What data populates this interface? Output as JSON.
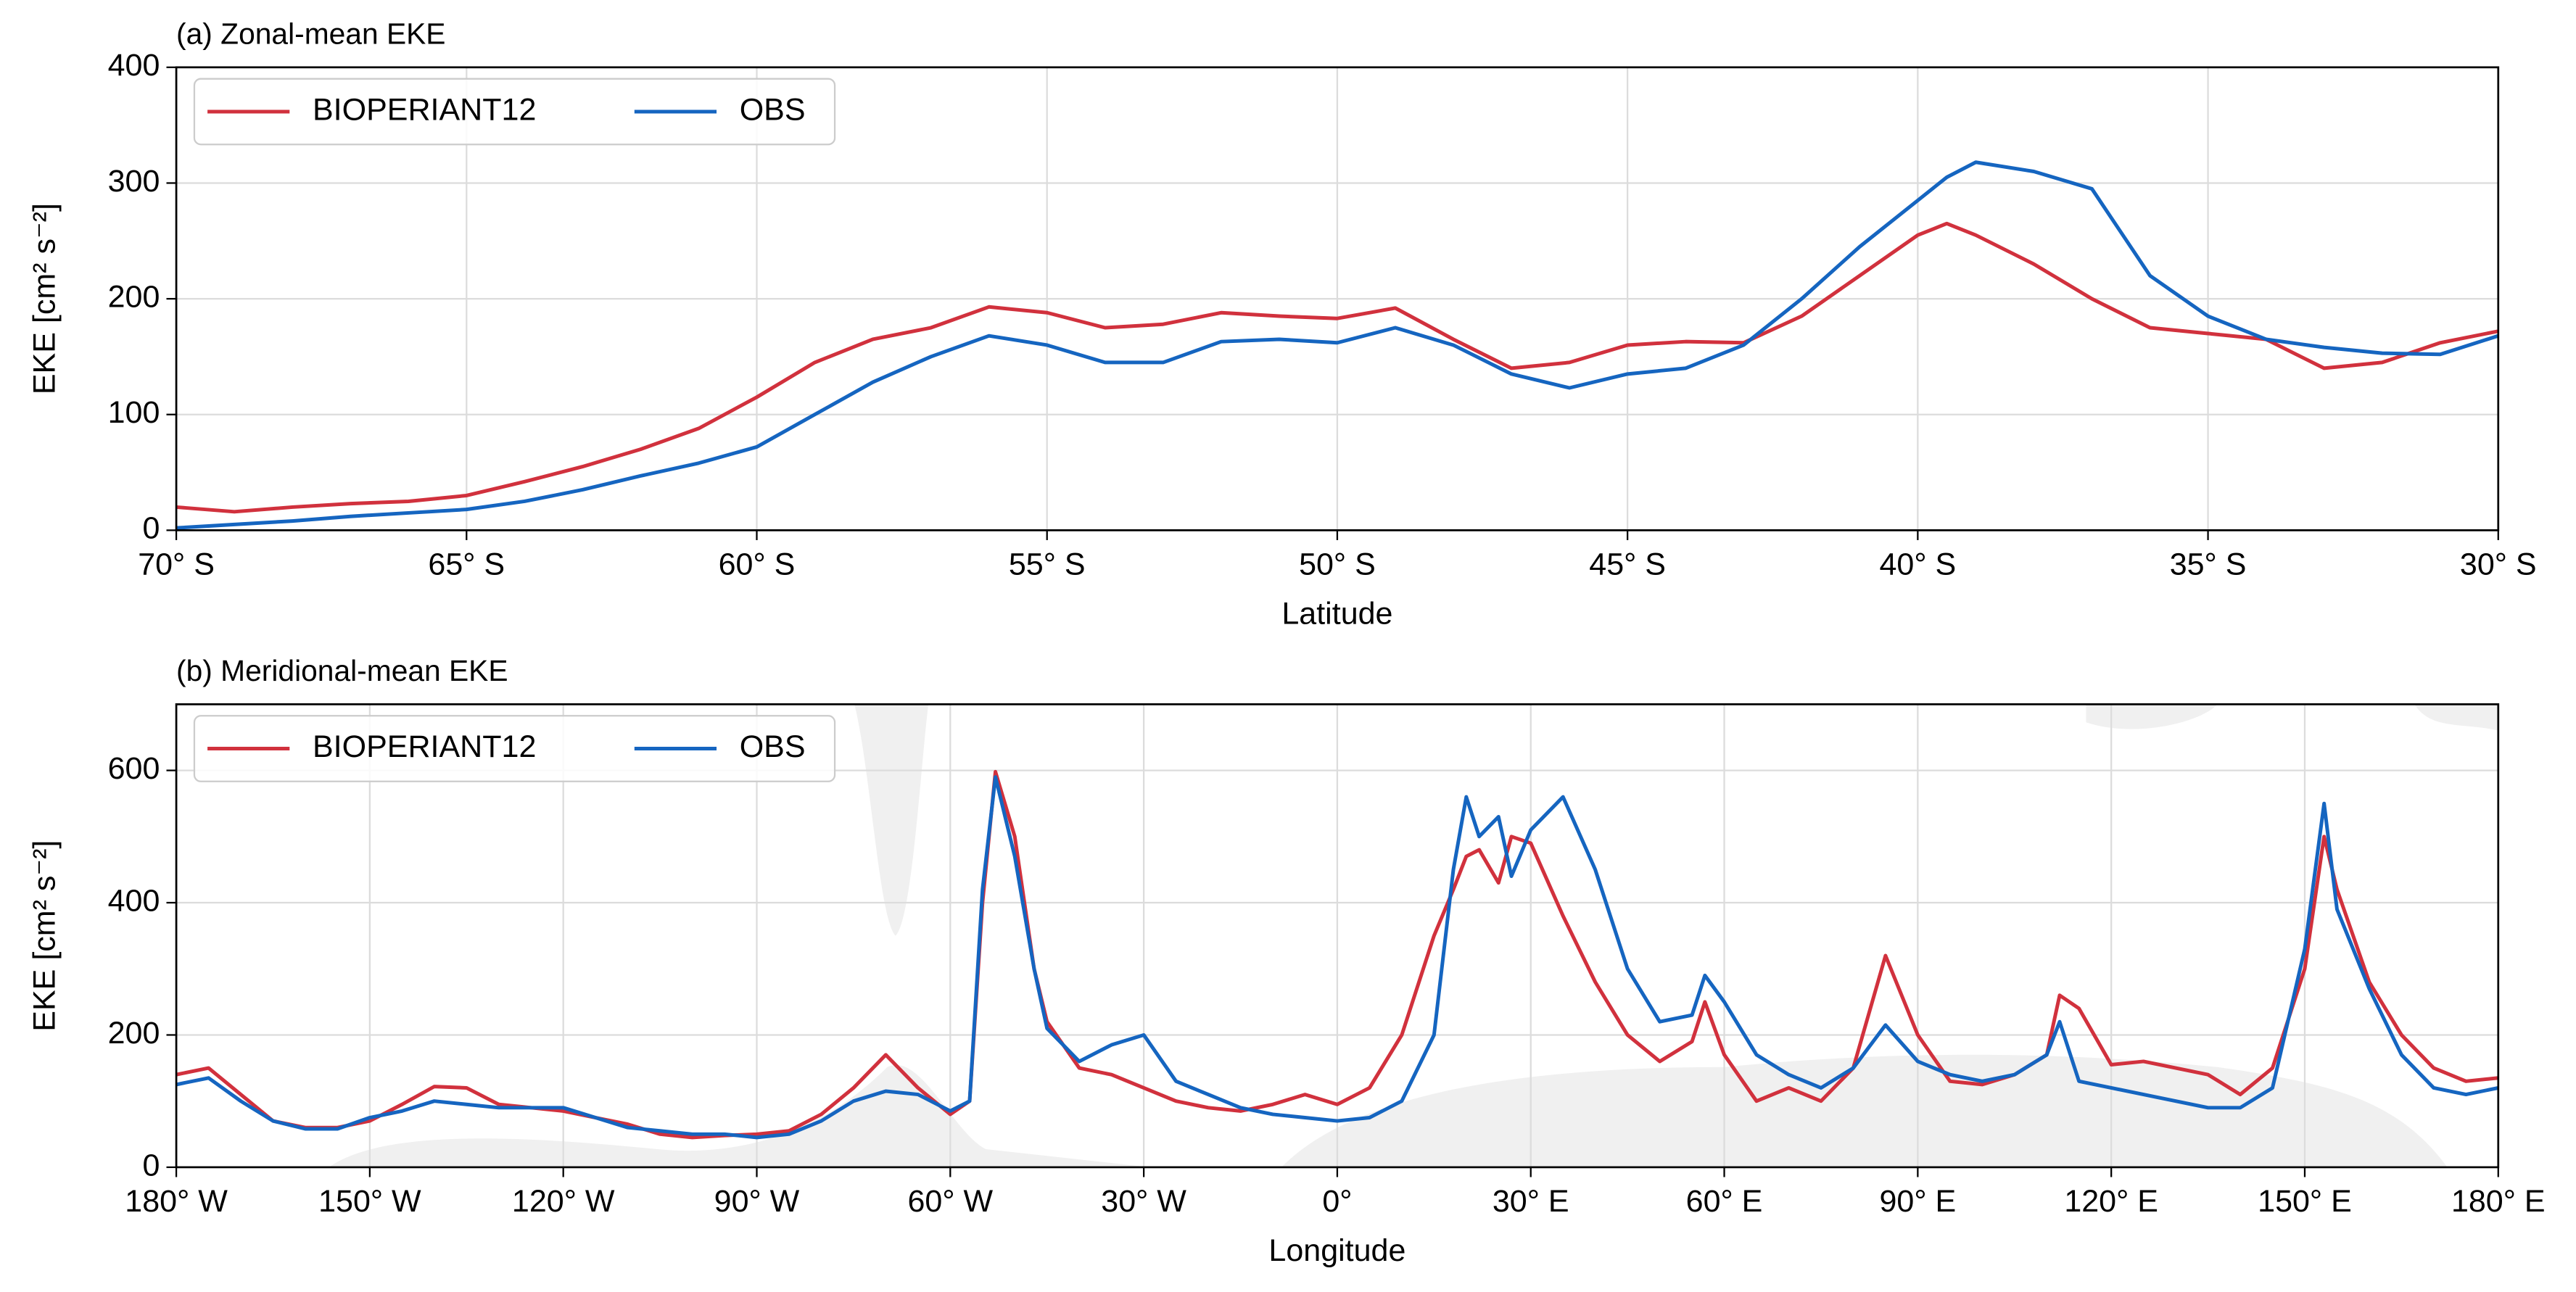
{
  "chart_data": [
    {
      "type": "line",
      "title": "(a) Zonal-mean EKE",
      "xlabel": "Latitude",
      "ylabel": "EKE [cm² s⁻²]",
      "x": [
        -70,
        -69,
        -68,
        -67,
        -66,
        -65,
        -64,
        -63,
        -62,
        -61,
        -60,
        -59,
        -58,
        -57,
        -56,
        -55,
        -54,
        -53,
        -52,
        -51,
        -50,
        -49,
        -48,
        -47,
        -46,
        -45,
        -44,
        -43,
        -42,
        -41,
        -40,
        -39.5,
        -39,
        -38,
        -37,
        -36,
        -35,
        -34,
        -33,
        -32,
        -31,
        -30
      ],
      "series": [
        {
          "name": "BIOPERIANT12",
          "color": "#d1313d",
          "values": [
            20,
            16,
            20,
            23,
            25,
            30,
            42,
            55,
            70,
            88,
            115,
            145,
            165,
            175,
            193,
            188,
            175,
            178,
            188,
            185,
            183,
            192,
            165,
            140,
            145,
            160,
            163,
            162,
            185,
            220,
            255,
            265,
            255,
            230,
            200,
            175,
            170,
            165,
            140,
            145,
            162,
            172
          ]
        },
        {
          "name": "OBS",
          "color": "#1565c0",
          "values": [
            2,
            5,
            8,
            12,
            15,
            18,
            25,
            35,
            47,
            58,
            72,
            100,
            128,
            150,
            168,
            160,
            145,
            145,
            163,
            165,
            162,
            175,
            160,
            135,
            123,
            135,
            140,
            160,
            200,
            245,
            285,
            305,
            318,
            310,
            295,
            220,
            185,
            165,
            158,
            153,
            152,
            168
          ]
        }
      ],
      "xlim": [
        -70,
        -30
      ],
      "ylim": [
        0,
        400
      ],
      "xticks": [
        {
          "value": -70,
          "label": "70° S"
        },
        {
          "value": -65,
          "label": "65° S"
        },
        {
          "value": -60,
          "label": "60° S"
        },
        {
          "value": -55,
          "label": "55° S"
        },
        {
          "value": -50,
          "label": "50° S"
        },
        {
          "value": -45,
          "label": "45° S"
        },
        {
          "value": -40,
          "label": "40° S"
        },
        {
          "value": -35,
          "label": "35° S"
        },
        {
          "value": -30,
          "label": "30° S"
        }
      ],
      "yticks": [
        0,
        100,
        200,
        300,
        400
      ],
      "grid": true,
      "legend": "upper left"
    },
    {
      "type": "line",
      "title": "(b) Meridional-mean EKE",
      "xlabel": "Longitude",
      "ylabel": "EKE [cm² s⁻²]",
      "x": [
        -180,
        -175,
        -170,
        -165,
        -160,
        -155,
        -150,
        -145,
        -140,
        -135,
        -130,
        -125,
        -120,
        -115,
        -110,
        -105,
        -100,
        -95,
        -90,
        -85,
        -80,
        -75,
        -70,
        -65,
        -60,
        -57,
        -55,
        -53,
        -50,
        -47,
        -45,
        -40,
        -35,
        -30,
        -25,
        -20,
        -15,
        -10,
        -5,
        0,
        5,
        10,
        15,
        18,
        20,
        22,
        25,
        27,
        30,
        35,
        40,
        45,
        50,
        55,
        57,
        60,
        65,
        70,
        75,
        80,
        85,
        90,
        95,
        100,
        105,
        110,
        112,
        115,
        120,
        125,
        130,
        135,
        140,
        145,
        150,
        153,
        155,
        160,
        165,
        170,
        175,
        180
      ],
      "series": [
        {
          "name": "BIOPERIANT12",
          "color": "#d1313d",
          "values": [
            140,
            150,
            110,
            70,
            60,
            60,
            70,
            95,
            122,
            120,
            95,
            90,
            85,
            75,
            65,
            50,
            45,
            48,
            50,
            55,
            80,
            120,
            170,
            120,
            80,
            100,
            400,
            598,
            500,
            300,
            220,
            150,
            140,
            120,
            100,
            90,
            85,
            95,
            110,
            95,
            120,
            200,
            350,
            420,
            470,
            480,
            430,
            500,
            490,
            380,
            280,
            200,
            160,
            190,
            250,
            170,
            100,
            120,
            100,
            150,
            320,
            200,
            130,
            125,
            140,
            170,
            260,
            240,
            155,
            160,
            150,
            140,
            110,
            150,
            300,
            500,
            420,
            280,
            200,
            150,
            130,
            135
          ]
        },
        {
          "name": "OBS",
          "color": "#1565c0",
          "values": [
            125,
            135,
            100,
            70,
            58,
            58,
            75,
            85,
            100,
            95,
            90,
            90,
            90,
            75,
            60,
            55,
            50,
            50,
            45,
            50,
            70,
            100,
            115,
            110,
            85,
            100,
            420,
            590,
            470,
            300,
            210,
            160,
            185,
            200,
            130,
            110,
            90,
            80,
            75,
            70,
            75,
            100,
            200,
            450,
            560,
            500,
            530,
            440,
            510,
            560,
            450,
            300,
            220,
            230,
            290,
            250,
            170,
            140,
            120,
            150,
            215,
            160,
            140,
            130,
            140,
            170,
            220,
            130,
            120,
            110,
            100,
            90,
            90,
            120,
            330,
            550,
            390,
            270,
            170,
            120,
            110,
            120
          ]
        }
      ],
      "xlim": [
        -180,
        180
      ],
      "ylim": [
        0,
        700
      ],
      "xticks": [
        {
          "value": -180,
          "label": "180° W"
        },
        {
          "value": -150,
          "label": "150° W"
        },
        {
          "value": -120,
          "label": "120° W"
        },
        {
          "value": -90,
          "label": "90° W"
        },
        {
          "value": -60,
          "label": "60° W"
        },
        {
          "value": -30,
          "label": "30° W"
        },
        {
          "value": 0,
          "label": "0°"
        },
        {
          "value": 30,
          "label": "30° E"
        },
        {
          "value": 60,
          "label": "60° E"
        },
        {
          "value": 90,
          "label": "90° E"
        },
        {
          "value": 120,
          "label": "120° E"
        },
        {
          "value": 150,
          "label": "150° E"
        },
        {
          "value": 180,
          "label": "180° E"
        }
      ],
      "yticks": [
        0,
        200,
        400,
        600
      ],
      "grid": true,
      "legend": "upper left"
    }
  ]
}
